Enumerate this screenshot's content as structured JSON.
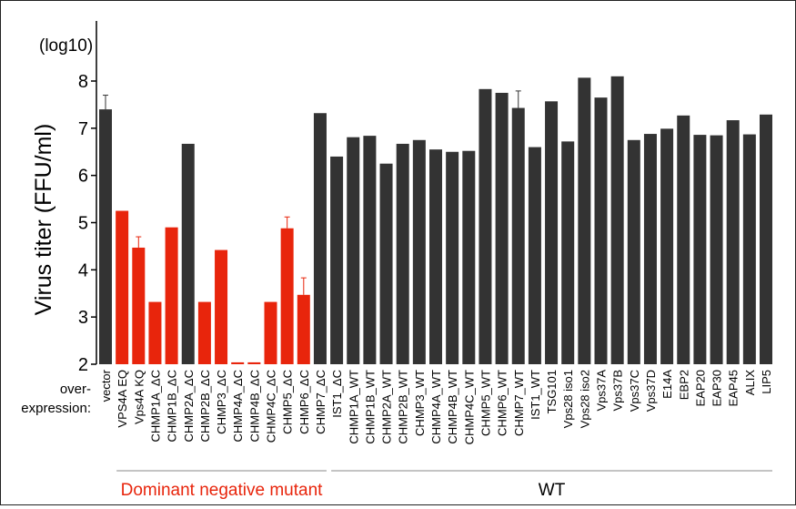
{
  "chart_data": {
    "type": "bar",
    "ylabel": "Virus titer (FFU/ml)",
    "y_unit_note": "(log10)",
    "xlabel_line1": "over-",
    "xlabel_line2": "expression:",
    "ylim": [
      2,
      8.4
    ],
    "yticks": [
      2,
      3,
      4,
      5,
      6,
      7,
      8
    ],
    "categories": [
      "vector",
      "VPS4A EQ",
      "Vps4A KQ",
      "CHMP1A_ΔC",
      "CHMP1B_ΔC",
      "CHMP2A_ΔC",
      "CHMP2B_ΔC",
      "CHMP3_ΔC",
      "CHMP4A_ΔC",
      "CHMP4B_ΔC",
      "CHMP4C_ΔC",
      "CHMP5_ΔC",
      "CHMP6_ΔC",
      "CHMP7_ΔC",
      "IST1_ΔC",
      "CHMP1A_WT",
      "CHMP1B_WT",
      "CHMP2A_WT",
      "CHMP2B_WT",
      "CHMP3_WT",
      "CHMP4A_WT",
      "CHMP4B_WT",
      "CHMP4C_WT",
      "CHMP5_WT",
      "CHMP6_WT",
      "CHMP7_WT",
      "IST1_WT",
      "TSG101",
      "Vps28 iso1",
      "Vps28 iso2",
      "Vps37A",
      "Vps37B",
      "Vps37C",
      "Vps37D",
      "E14A",
      "EBP2",
      "EAP20",
      "EAP30",
      "EAP45",
      "ALIX",
      "LIP5"
    ],
    "values": [
      7.4,
      5.25,
      4.47,
      3.32,
      4.9,
      6.67,
      3.32,
      4.42,
      2.04,
      2.04,
      3.32,
      4.88,
      3.47,
      7.32,
      6.4,
      6.81,
      6.84,
      6.25,
      6.67,
      6.75,
      6.55,
      6.5,
      6.52,
      7.83,
      7.75,
      7.43,
      6.6,
      7.57,
      6.72,
      8.07,
      7.65,
      8.1,
      6.75,
      6.88,
      6.99,
      7.27,
      6.86,
      6.85,
      7.17,
      6.87,
      7.29
    ],
    "errors": [
      0.3,
      0,
      0.23,
      0,
      0,
      0,
      0,
      0,
      0,
      0,
      0,
      0.24,
      0.36,
      0,
      0,
      0,
      0,
      0,
      0,
      0,
      0,
      0,
      0,
      0,
      0,
      0.36,
      0,
      0,
      0,
      0,
      0,
      0,
      0,
      0,
      0,
      0,
      0,
      0,
      0,
      0,
      0
    ],
    "bar_colors": {
      "dominant_negative": "#e8250c",
      "default": "#333333"
    },
    "red_indices": [
      1,
      2,
      3,
      4,
      6,
      7,
      8,
      9,
      10,
      11,
      12
    ],
    "groups": [
      {
        "name": "Dominant negative mutant",
        "color": "#e8250c",
        "start": 1,
        "end": 13
      },
      {
        "name": "WT",
        "color": "#000000",
        "start": 14,
        "end": 40
      }
    ]
  }
}
